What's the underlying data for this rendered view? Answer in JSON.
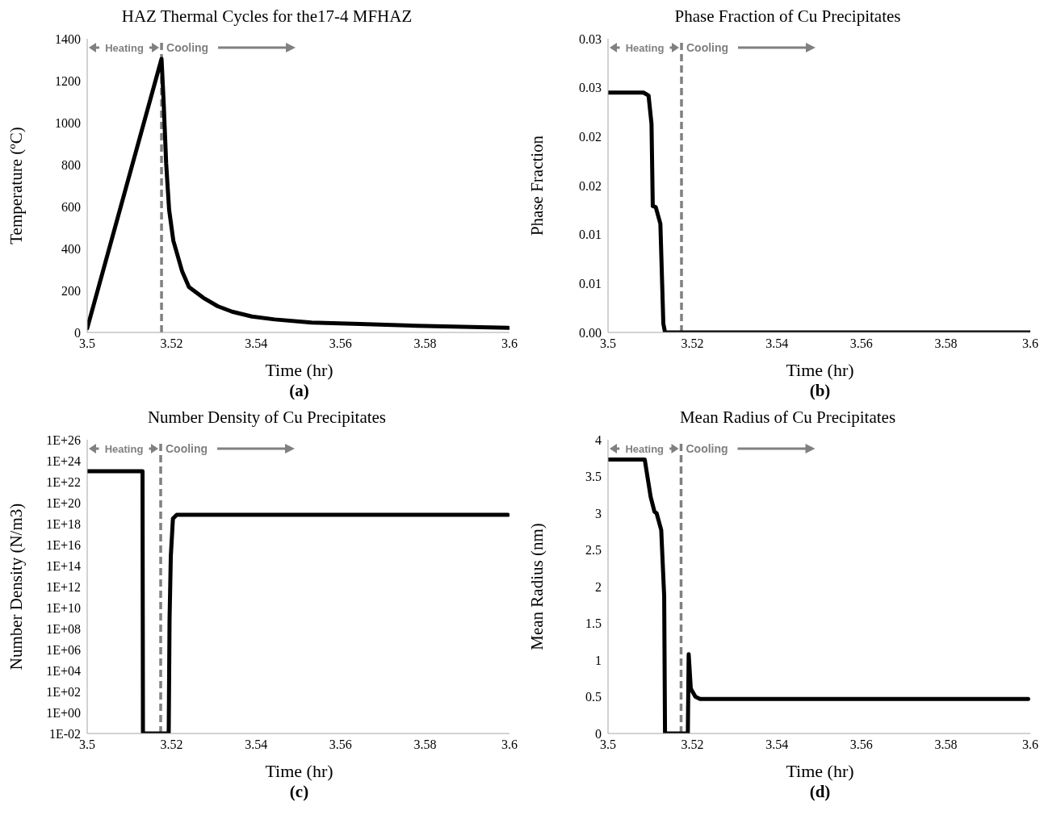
{
  "chart_data": [
    {
      "type": "line",
      "title": "HAZ Thermal Cycles for the17-4 MFHAZ",
      "xlabel": "Time (hr)",
      "ylabel": "Temperature (ºC)",
      "annotations": [
        "Heating",
        "Cooling",
        "(a)"
      ],
      "x": [
        3.5,
        3.5176,
        3.5181,
        3.5187,
        3.5194,
        3.5204,
        3.5225,
        3.5241,
        3.5275,
        3.5309,
        3.5343,
        3.539,
        3.5444,
        3.5531,
        3.5646,
        3.578,
        3.5997
      ],
      "values": [
        20,
        1304,
        1099,
        804,
        584,
        437,
        290,
        216,
        165,
        125,
        99,
        76,
        62,
        47,
        40,
        32,
        22
      ],
      "color": "#000000",
      "xlim": [
        3.5,
        3.6
      ],
      "xticks": [
        3.5,
        3.52,
        3.54,
        3.56,
        3.58,
        3.6
      ],
      "ylim": [
        0,
        1400
      ],
      "yticks": [
        0,
        200,
        400,
        600,
        800,
        1000,
        1200,
        1400
      ],
      "ref_lines": [
        {
          "axis": "x",
          "value": 3.5176,
          "color": "#808080",
          "line_style": "dashed"
        }
      ]
    },
    {
      "type": "line",
      "title": "Phase Fraction of Cu Precipitates",
      "xlabel": "Time (hr)",
      "ylabel": "Phase Fraction",
      "annotations": [
        "Heating",
        "Cooling",
        "(b)"
      ],
      "x": [
        3.5,
        3.5084,
        3.5096,
        3.5103,
        3.5106,
        3.5113,
        3.5124,
        3.5131,
        3.5135,
        3.6
      ],
      "values": [
        0.0245,
        0.0245,
        0.0242,
        0.0213,
        0.0129,
        0.0128,
        0.0111,
        0.0009,
        0,
        0
      ],
      "color": "#000000",
      "xlim": [
        3.5,
        3.6
      ],
      "xticks": [
        3.5,
        3.52,
        3.54,
        3.56,
        3.58,
        3.6
      ],
      "ylim": [
        0,
        0.03
      ],
      "yticks": [
        {
          "value": 0,
          "label": "0.00"
        },
        {
          "value": 0.005,
          "label": "0.01"
        },
        {
          "value": 0.01,
          "label": "0.01"
        },
        {
          "value": 0.015,
          "label": "0.02"
        },
        {
          "value": 0.02,
          "label": "0.02"
        },
        {
          "value": 0.025,
          "label": "0.03"
        },
        {
          "value": 0.03,
          "label": "0.03"
        }
      ],
      "ref_lines": [
        {
          "axis": "x",
          "value": 3.5174,
          "color": "#808080",
          "line_style": "dashed"
        }
      ]
    },
    {
      "type": "line",
      "title": "Number Density of Cu Precipitates",
      "xlabel": "Time (hr)",
      "ylabel": "Number Density (N/m3)",
      "annotations": [
        "Heating",
        "Cooling",
        "(c)"
      ],
      "log": "y",
      "x": [
        3.5,
        3.5131,
        3.5132,
        3.5193,
        3.5195,
        3.5198,
        3.5203,
        3.5212,
        3.5996
      ],
      "values": [
        1e+23,
        1e+23,
        0.01,
        0.01,
        700000000.0,
        800000000000000.0,
        3e+18,
        7e+18,
        7e+18
      ],
      "color": "#000000",
      "xlim": [
        3.5,
        3.6
      ],
      "xticks": [
        3.5,
        3.52,
        3.54,
        3.56,
        3.58,
        3.6
      ],
      "ylim": [
        0.01,
        1e+26
      ],
      "yticks": [
        {
          "value": 0.01,
          "label": "1E-02"
        },
        {
          "value": 1,
          "label": "1E+00"
        },
        {
          "value": 100,
          "label": "1E+02"
        },
        {
          "value": 10000.0,
          "label": "1E+04"
        },
        {
          "value": 1000000.0,
          "label": "1E+06"
        },
        {
          "value": 100000000.0,
          "label": "1E+08"
        },
        {
          "value": 10000000000.0,
          "label": "1E+10"
        },
        {
          "value": 1000000000000.0,
          "label": "1E+12"
        },
        {
          "value": 100000000000000.0,
          "label": "1E+14"
        },
        {
          "value": 1e+16,
          "label": "1E+16"
        },
        {
          "value": 1e+18,
          "label": "1E+18"
        },
        {
          "value": 1e+20,
          "label": "1E+20"
        },
        {
          "value": 1e+22,
          "label": "1E+22"
        },
        {
          "value": 1e+24,
          "label": "1E+24"
        },
        {
          "value": 1e+26,
          "label": "1E+26"
        }
      ],
      "ref_lines": [
        {
          "axis": "x",
          "value": 3.5174,
          "color": "#808080",
          "line_style": "dashed"
        }
      ]
    },
    {
      "type": "line",
      "title": "Mean Radius of Cu Precipitates",
      "xlabel": "Time (hr)",
      "ylabel": "Mean Radius (nm)",
      "annotations": [
        "Heating",
        "Cooling",
        "(d)"
      ],
      "x": [
        3.5,
        3.5087,
        3.5101,
        3.511,
        3.5115,
        3.5126,
        3.5133,
        3.5135,
        3.5189,
        3.5191,
        3.5196,
        3.5207,
        3.5218,
        3.5995
      ],
      "values": [
        3.73,
        3.73,
        3.22,
        3.02,
        3.0,
        2.77,
        1.87,
        0,
        0,
        1.08,
        0.61,
        0.5,
        0.47,
        0.47
      ],
      "color": "#000000",
      "xlim": [
        3.5,
        3.6
      ],
      "xticks": [
        3.5,
        3.52,
        3.54,
        3.56,
        3.58,
        3.6
      ],
      "ylim": [
        0,
        4
      ],
      "yticks": [
        0,
        0.5,
        1,
        1.5,
        2,
        2.5,
        3,
        3.5,
        4
      ],
      "ref_lines": [
        {
          "axis": "x",
          "value": 3.5173,
          "color": "#808080",
          "line_style": "dashed"
        }
      ]
    }
  ]
}
